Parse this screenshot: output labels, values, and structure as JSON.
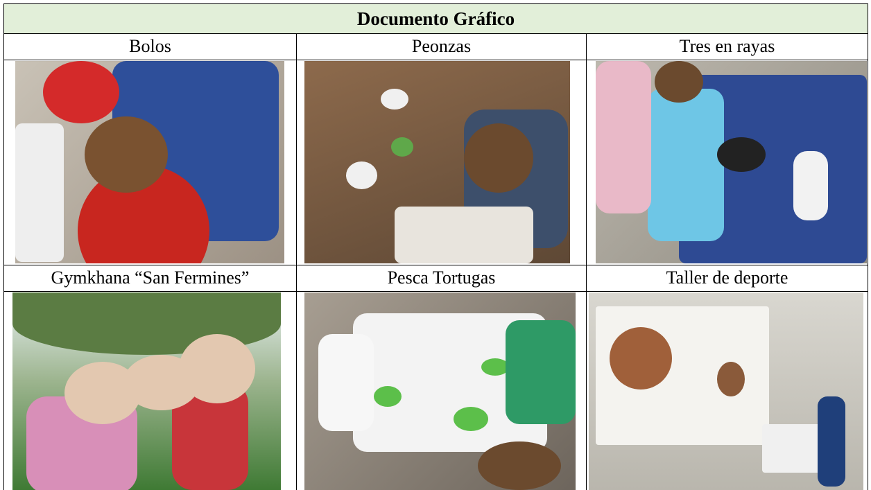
{
  "header": {
    "title": "Documento Gráfico"
  },
  "table": {
    "rows": [
      [
        "Bolos",
        "Peonzas",
        "Tres en rayas"
      ],
      [
        "Gymkhana “San Fermines”",
        "Pesca Tortugas",
        "Taller de deporte"
      ]
    ]
  }
}
